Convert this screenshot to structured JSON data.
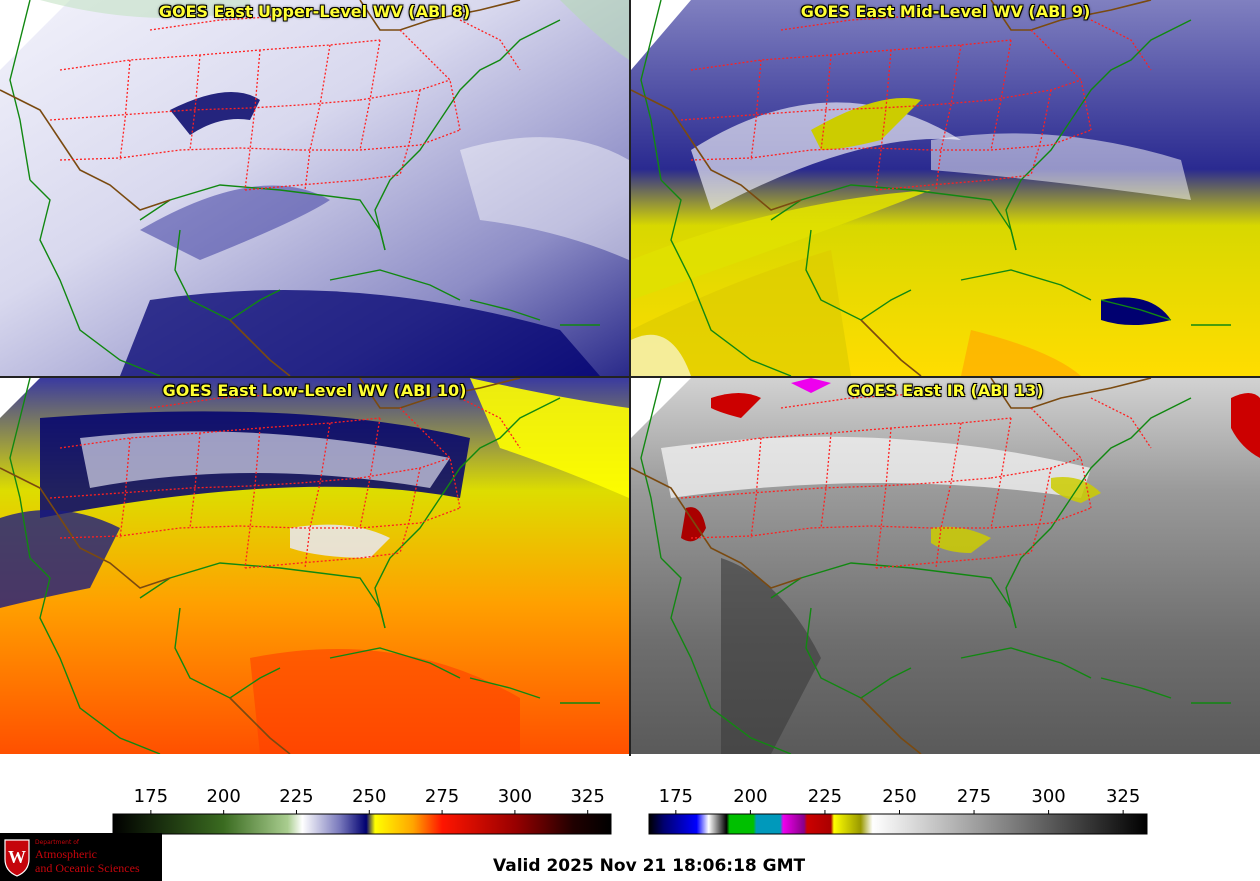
{
  "panels": [
    {
      "title": "GOES East Upper-Level WV (ABI 8)",
      "palette": "wv"
    },
    {
      "title": "GOES East Mid-Level WV (ABI 9)",
      "palette": "wv"
    },
    {
      "title": "GOES East Low-Level WV (ABI 10)",
      "palette": "wv"
    },
    {
      "title": "GOES East IR (ABI 13)",
      "palette": "ir"
    }
  ],
  "colorbars": {
    "wv": {
      "ticks": [
        "175",
        "200",
        "225",
        "250",
        "275",
        "300",
        "325"
      ],
      "range": [
        162,
        333
      ],
      "stops": [
        {
          "v": 162,
          "c": "#000000"
        },
        {
          "v": 200,
          "c": "#3a6b20"
        },
        {
          "v": 222,
          "c": "#a9cd8f"
        },
        {
          "v": 227,
          "c": "#ffffff"
        },
        {
          "v": 240,
          "c": "#7777bb"
        },
        {
          "v": 249,
          "c": "#000070"
        },
        {
          "v": 252,
          "c": "#ffff00"
        },
        {
          "v": 265,
          "c": "#ffa500"
        },
        {
          "v": 275,
          "c": "#ff1500"
        },
        {
          "v": 300,
          "c": "#990000"
        },
        {
          "v": 320,
          "c": "#200000"
        },
        {
          "v": 333,
          "c": "#000000"
        }
      ]
    },
    "ir": {
      "ticks": [
        "175",
        "200",
        "225",
        "250",
        "275",
        "300",
        "325"
      ],
      "range": [
        166,
        333
      ],
      "stops": [
        {
          "v": 166,
          "c": "#000000"
        },
        {
          "v": 171,
          "c": "#000070"
        },
        {
          "v": 182,
          "c": "#0000ff"
        },
        {
          "v": 186,
          "c": "#ffffff"
        },
        {
          "v": 192,
          "c": "#000000"
        },
        {
          "v": 193,
          "c": "#00c000"
        },
        {
          "v": 201,
          "c": "#00c000"
        },
        {
          "v": 202,
          "c": "#0099bb"
        },
        {
          "v": 210,
          "c": "#0099bb"
        },
        {
          "v": 211,
          "c": "#ee00ee"
        },
        {
          "v": 218,
          "c": "#880088"
        },
        {
          "v": 219,
          "c": "#cc0000"
        },
        {
          "v": 227,
          "c": "#aa0000"
        },
        {
          "v": 228,
          "c": "#ffff00"
        },
        {
          "v": 237,
          "c": "#999900"
        },
        {
          "v": 241,
          "c": "#ffffff"
        },
        {
          "v": 333,
          "c": "#000000"
        }
      ]
    }
  },
  "valid_time": "Valid 2025 Nov 21 18:06:18 GMT",
  "logo": {
    "line1": "Department of",
    "line2": "Atmospheric",
    "line3": "and Oceanic Sciences",
    "seal_letter": "W"
  },
  "colors": {
    "state_borders": "#ff2020",
    "coastlines": "#118811",
    "national_borders": "#7a4a10",
    "title_text": "#ffff33"
  }
}
